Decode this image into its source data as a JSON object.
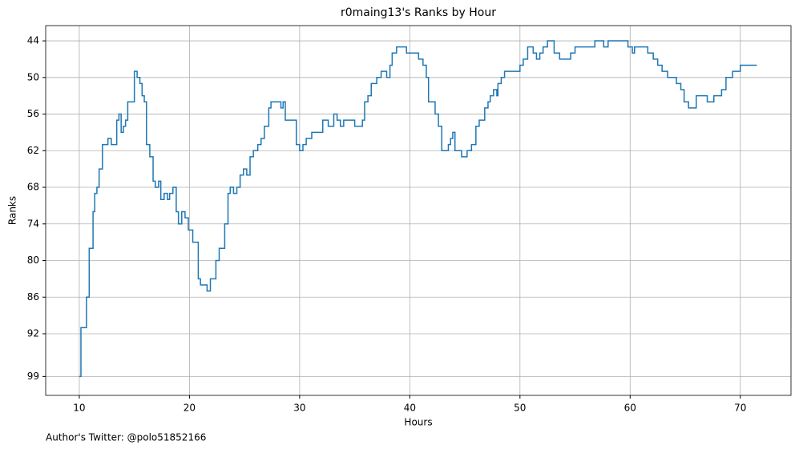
{
  "chart_data": {
    "type": "step",
    "title": "r0maing13's Ranks by Hour",
    "xlabel": "Hours",
    "ylabel": "Ranks",
    "annotation": "Author's Twitter: @polo51852166",
    "x": [
      10.0,
      10.15,
      10.65,
      10.9,
      11.25,
      11.4,
      11.6,
      11.8,
      12.1,
      12.6,
      12.9,
      13.4,
      13.6,
      13.8,
      14.0,
      14.2,
      14.4,
      15.0,
      15.25,
      15.5,
      15.7,
      15.9,
      16.1,
      16.4,
      16.7,
      16.9,
      17.2,
      17.4,
      17.7,
      18.0,
      18.2,
      18.5,
      18.8,
      19.0,
      19.3,
      19.6,
      19.9,
      20.3,
      20.8,
      21.0,
      21.6,
      21.9,
      22.4,
      22.7,
      23.2,
      23.5,
      23.7,
      24.0,
      24.3,
      24.6,
      24.9,
      25.2,
      25.5,
      25.8,
      26.2,
      26.5,
      26.8,
      27.2,
      27.4,
      28.3,
      28.5,
      28.7,
      29.7,
      30.0,
      30.3,
      30.6,
      31.1,
      32.1,
      32.6,
      33.1,
      33.4,
      33.7,
      34.0,
      34.5,
      35.0,
      35.7,
      35.9,
      36.2,
      36.5,
      37.0,
      37.4,
      37.9,
      38.2,
      38.4,
      38.8,
      39.7,
      40.8,
      41.2,
      41.5,
      41.7,
      42.3,
      42.6,
      42.9,
      43.5,
      43.7,
      43.9,
      44.1,
      44.7,
      45.2,
      45.6,
      46.0,
      46.3,
      46.8,
      47.1,
      47.3,
      47.6,
      47.9,
      48.0,
      48.3,
      48.6,
      50.0,
      50.3,
      50.7,
      51.2,
      51.5,
      51.8,
      52.1,
      52.5,
      53.1,
      53.6,
      54.6,
      55.0,
      56.8,
      57.6,
      58.0,
      59.8,
      60.2,
      60.4,
      61.6,
      62.1,
      62.5,
      62.9,
      63.4,
      64.2,
      64.6,
      64.9,
      65.3,
      66.0,
      67.0,
      67.6,
      68.3,
      68.7,
      69.3,
      70.0,
      71.5
    ],
    "series": [
      {
        "name": "Rank",
        "color": "#1f77b4",
        "values": [
          99,
          91,
          86,
          78,
          72,
          69,
          68,
          65,
          61,
          60,
          61,
          57,
          56,
          59,
          58,
          57,
          54,
          49,
          50,
          51,
          53,
          54,
          61,
          63,
          67,
          68,
          67,
          70,
          69,
          70,
          69,
          68,
          72,
          74,
          72,
          73,
          75,
          77,
          83,
          84,
          85,
          83,
          80,
          78,
          74,
          69,
          68,
          69,
          68,
          66,
          65,
          66,
          63,
          62,
          61,
          60,
          58,
          55,
          54,
          55,
          54,
          57,
          61,
          62,
          61,
          60,
          59,
          57,
          58,
          56,
          57,
          58,
          57,
          57,
          58,
          57,
          54,
          53,
          51,
          50,
          49,
          50,
          48,
          46,
          45,
          46,
          47,
          48,
          50,
          54,
          56,
          58,
          62,
          61,
          60,
          59,
          62,
          63,
          62,
          61,
          58,
          57,
          55,
          54,
          53,
          52,
          53,
          51,
          50,
          49,
          48,
          47,
          45,
          46,
          47,
          46,
          45,
          44,
          46,
          47,
          46,
          45,
          44,
          45,
          44,
          45,
          46,
          45,
          46,
          47,
          48,
          49,
          50,
          51,
          52,
          54,
          55,
          53,
          54,
          53,
          52,
          50,
          49,
          48,
          48
        ]
      }
    ],
    "xlim": [
      6.95,
      74.6
    ],
    "ylim": [
      41.5,
      102.1
    ],
    "y_inverted": true,
    "xticks": [
      10,
      20,
      30,
      40,
      50,
      60,
      70
    ],
    "yticks": [
      44,
      50,
      56,
      62,
      68,
      74,
      80,
      86,
      92,
      99
    ],
    "grid": true
  }
}
